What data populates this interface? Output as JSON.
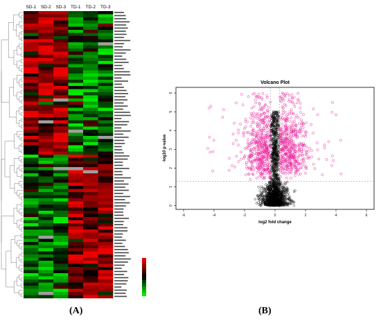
{
  "figure_labels": {
    "a": "(A)",
    "b": "(B)"
  },
  "chart_data": [
    {
      "type": "heatmap",
      "columns": [
        "SD-1",
        "SD-2",
        "SD-3",
        "TD-1",
        "TD-2",
        "TD-3"
      ],
      "row_count": 92,
      "color_low": "#00e000",
      "color_mid": "#000000",
      "color_high": "#e00000",
      "missing_color": "#a0a0a0",
      "dendrogram": true,
      "legend": "bottom-right"
    },
    {
      "type": "scatter",
      "title": "Volcano Plot",
      "xlabel": "log2 fold change",
      "ylabel": "-log10 p-value",
      "xlim": [
        -6.5,
        6.5
      ],
      "ylim": [
        -0.2,
        6.3
      ],
      "xticks": [
        -6,
        -4,
        -2,
        0,
        2,
        4,
        6
      ],
      "yticks": [
        0,
        1,
        2,
        3,
        4,
        5,
        6
      ],
      "threshold_y": 1.3,
      "threshold_x": [
        -0.3,
        0.3
      ],
      "series": [
        {
          "color": "#e8209a",
          "count": 1000
        },
        {
          "color": "#000000",
          "count": 1500
        }
      ]
    }
  ]
}
